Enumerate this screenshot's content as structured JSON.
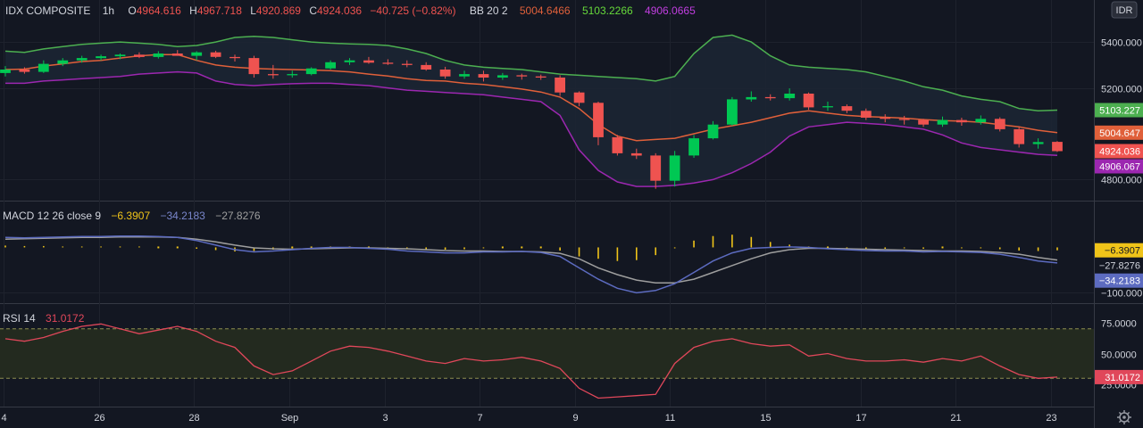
{
  "header": {
    "symbol": "IDX COMPOSITE",
    "interval": "1h",
    "o_label": "O",
    "o_value": "4964.616",
    "h_label": "H",
    "h_value": "4967.718",
    "l_label": "L",
    "l_value": "4920.869",
    "c_label": "C",
    "c_value": "4924.036",
    "change": "−40.725 (−0.82%)",
    "bb_label": "BB 20 2",
    "bb_mid": "5004.6466",
    "bb_upper": "5103.2266",
    "bb_lower": "4906.0665",
    "currency": "IDR"
  },
  "macd_header": {
    "label": "MACD 12 26 close 9",
    "hist": "−6.3907",
    "macd": "−34.2183",
    "signal": "−27.8276"
  },
  "rsi_header": {
    "label": "RSI 14",
    "value": "31.0172"
  },
  "colors": {
    "background": "#131722",
    "up": "#26a69a",
    "up_bright": "#00c853",
    "down": "#ef5350",
    "bb_upper": "#4caf50",
    "bb_mid": "#e0603a",
    "bb_lower": "#9c27b0",
    "bb_fill": "#1c2533",
    "macd_line": "#5c6bc0",
    "signal_line": "#9e9e9e",
    "hist": "#f0c419",
    "rsi_line": "#e0475a",
    "rsi_band": "#232a1f",
    "rsi_level": "#8d8d50"
  },
  "x_axis": {
    "labels": [
      {
        "t": 0,
        "text": "4"
      },
      {
        "t": 1,
        "text": "26"
      },
      {
        "t": 2,
        "text": "28"
      },
      {
        "t": 3,
        "text": "Sep"
      },
      {
        "t": 4,
        "text": "3"
      },
      {
        "t": 5,
        "text": "7"
      },
      {
        "t": 6,
        "text": "9"
      },
      {
        "t": 7,
        "text": "11"
      },
      {
        "t": 8,
        "text": "15"
      },
      {
        "t": 9,
        "text": "17"
      },
      {
        "t": 10,
        "text": "21"
      },
      {
        "t": 11,
        "text": "23"
      }
    ]
  },
  "price_axis": {
    "ticks": [
      "5400.000",
      "5200.000",
      "4800.000"
    ],
    "tick_values": [
      5400,
      5200,
      4800
    ],
    "range": [
      4720,
      5490
    ],
    "tags": [
      {
        "value": 5103.227,
        "text": "5103.227",
        "color": "#4caf50"
      },
      {
        "value": 5004.647,
        "text": "5004.647",
        "color": "#e0603a"
      },
      {
        "value": 4924.036,
        "text": "4924.036",
        "color": "#ef5350"
      },
      {
        "value": 4906.067,
        "text": "4906.067",
        "color": "#9c27b0"
      }
    ]
  },
  "macd_axis": {
    "ticks": [
      "−100.000"
    ],
    "tick_values": [
      -100
    ],
    "range": [
      -115,
      50
    ],
    "tags": [
      {
        "value": -6.3907,
        "text": "−6.3907",
        "color": "#f0c419",
        "text_color": "#131722"
      },
      {
        "value": -27.8276,
        "text": "−27.8276",
        "color": "#131722",
        "text_color": "#d1d4dc"
      },
      {
        "value": -34.2183,
        "text": "−34.2183",
        "color": "#5c6bc0",
        "text_color": "#ffffff"
      }
    ]
  },
  "rsi_axis": {
    "ticks": [
      "75.0000",
      "50.0000",
      "25.0000"
    ],
    "tick_values": [
      75,
      50,
      25
    ],
    "range": [
      10,
      85
    ],
    "levels": [
      70,
      30
    ],
    "tags": [
      {
        "value": 31.0172,
        "text": "31.0172",
        "color": "#e0475a",
        "text_color": "#ffffff"
      }
    ]
  },
  "chart_data": {
    "type": "candlestick",
    "title": "IDX COMPOSITE, 1h",
    "x_dates": [
      "4",
      "26",
      "28",
      "Sep",
      "3",
      "7",
      "9",
      "11",
      "15",
      "17",
      "21",
      "23"
    ],
    "bollinger_bands": {
      "upper": [
        5360,
        5355,
        5370,
        5380,
        5390,
        5395,
        5400,
        5395,
        5390,
        5380,
        5385,
        5400,
        5420,
        5425,
        5420,
        5410,
        5400,
        5395,
        5392,
        5390,
        5385,
        5370,
        5350,
        5320,
        5300,
        5290,
        5285,
        5280,
        5270,
        5260,
        5255,
        5250,
        5245,
        5240,
        5230,
        5250,
        5350,
        5420,
        5430,
        5400,
        5340,
        5300,
        5290,
        5285,
        5280,
        5270,
        5250,
        5230,
        5205,
        5190,
        5165,
        5150,
        5140,
        5110,
        5100,
        5103
      ],
      "middle": [
        5280,
        5282,
        5295,
        5305,
        5315,
        5320,
        5330,
        5340,
        5345,
        5345,
        5320,
        5300,
        5290,
        5285,
        5282,
        5280,
        5278,
        5275,
        5270,
        5260,
        5252,
        5240,
        5232,
        5230,
        5220,
        5215,
        5205,
        5195,
        5182,
        5160,
        5110,
        5040,
        4990,
        4970,
        4975,
        4980,
        5000,
        5020,
        5035,
        5050,
        5070,
        5090,
        5100,
        5090,
        5080,
        5075,
        5072,
        5068,
        5062,
        5057,
        5055,
        5050,
        5040,
        5030,
        5015,
        5005
      ],
      "lower": [
        5220,
        5220,
        5230,
        5235,
        5240,
        5245,
        5250,
        5260,
        5265,
        5270,
        5265,
        5230,
        5215,
        5210,
        5215,
        5218,
        5220,
        5220,
        5215,
        5210,
        5200,
        5190,
        5185,
        5180,
        5175,
        5170,
        5160,
        5150,
        5140,
        5080,
        4930,
        4840,
        4790,
        4770,
        4770,
        4775,
        4785,
        4800,
        4830,
        4870,
        4920,
        4990,
        5030,
        5040,
        5050,
        5045,
        5040,
        5030,
        5020,
        4995,
        4960,
        4940,
        4930,
        4920,
        4910,
        4906
      ]
    },
    "candles": [
      {
        "o": 5265,
        "h": 5295,
        "l": 5250,
        "c": 5280
      },
      {
        "o": 5280,
        "h": 5290,
        "l": 5262,
        "c": 5270
      },
      {
        "o": 5270,
        "h": 5320,
        "l": 5265,
        "c": 5305
      },
      {
        "o": 5305,
        "h": 5330,
        "l": 5295,
        "c": 5320
      },
      {
        "o": 5320,
        "h": 5340,
        "l": 5310,
        "c": 5330
      },
      {
        "o": 5330,
        "h": 5345,
        "l": 5320,
        "c": 5338
      },
      {
        "o": 5338,
        "h": 5350,
        "l": 5325,
        "c": 5345
      },
      {
        "o": 5345,
        "h": 5355,
        "l": 5330,
        "c": 5335
      },
      {
        "o": 5335,
        "h": 5360,
        "l": 5328,
        "c": 5350
      },
      {
        "o": 5350,
        "h": 5365,
        "l": 5340,
        "c": 5340
      },
      {
        "o": 5340,
        "h": 5360,
        "l": 5320,
        "c": 5355
      },
      {
        "o": 5355,
        "h": 5362,
        "l": 5330,
        "c": 5335
      },
      {
        "o": 5335,
        "h": 5345,
        "l": 5315,
        "c": 5330
      },
      {
        "o": 5330,
        "h": 5340,
        "l": 5245,
        "c": 5260
      },
      {
        "o": 5260,
        "h": 5300,
        "l": 5240,
        "c": 5255
      },
      {
        "o": 5255,
        "h": 5275,
        "l": 5245,
        "c": 5260
      },
      {
        "o": 5260,
        "h": 5290,
        "l": 5255,
        "c": 5285
      },
      {
        "o": 5285,
        "h": 5320,
        "l": 5280,
        "c": 5312
      },
      {
        "o": 5312,
        "h": 5330,
        "l": 5300,
        "c": 5320
      },
      {
        "o": 5320,
        "h": 5335,
        "l": 5305,
        "c": 5310
      },
      {
        "o": 5310,
        "h": 5325,
        "l": 5300,
        "c": 5305
      },
      {
        "o": 5305,
        "h": 5320,
        "l": 5290,
        "c": 5300
      },
      {
        "o": 5300,
        "h": 5312,
        "l": 5275,
        "c": 5280
      },
      {
        "o": 5280,
        "h": 5292,
        "l": 5240,
        "c": 5250
      },
      {
        "o": 5250,
        "h": 5275,
        "l": 5240,
        "c": 5260
      },
      {
        "o": 5260,
        "h": 5275,
        "l": 5228,
        "c": 5245
      },
      {
        "o": 5245,
        "h": 5265,
        "l": 5235,
        "c": 5255
      },
      {
        "o": 5255,
        "h": 5262,
        "l": 5236,
        "c": 5250
      },
      {
        "o": 5250,
        "h": 5258,
        "l": 5235,
        "c": 5245
      },
      {
        "o": 5245,
        "h": 5255,
        "l": 5165,
        "c": 5180
      },
      {
        "o": 5180,
        "h": 5185,
        "l": 5120,
        "c": 5135
      },
      {
        "o": 5135,
        "h": 5140,
        "l": 4950,
        "c": 4985
      },
      {
        "o": 4985,
        "h": 4995,
        "l": 4905,
        "c": 4915
      },
      {
        "o": 4915,
        "h": 4935,
        "l": 4890,
        "c": 4905
      },
      {
        "o": 4905,
        "h": 4915,
        "l": 4760,
        "c": 4795
      },
      {
        "o": 4795,
        "h": 4925,
        "l": 4770,
        "c": 4905
      },
      {
        "o": 4905,
        "h": 4995,
        "l": 4895,
        "c": 4980
      },
      {
        "o": 4980,
        "h": 5055,
        "l": 4975,
        "c": 5040
      },
      {
        "o": 5040,
        "h": 5160,
        "l": 5035,
        "c": 5150
      },
      {
        "o": 5150,
        "h": 5185,
        "l": 5140,
        "c": 5160
      },
      {
        "o": 5160,
        "h": 5172,
        "l": 5145,
        "c": 5155
      },
      {
        "o": 5155,
        "h": 5198,
        "l": 5145,
        "c": 5175
      },
      {
        "o": 5175,
        "h": 5180,
        "l": 5105,
        "c": 5115
      },
      {
        "o": 5115,
        "h": 5140,
        "l": 5100,
        "c": 5120
      },
      {
        "o": 5120,
        "h": 5128,
        "l": 5090,
        "c": 5100
      },
      {
        "o": 5100,
        "h": 5110,
        "l": 5060,
        "c": 5070
      },
      {
        "o": 5070,
        "h": 5085,
        "l": 5050,
        "c": 5065
      },
      {
        "o": 5065,
        "h": 5078,
        "l": 5040,
        "c": 5060
      },
      {
        "o": 5060,
        "h": 5065,
        "l": 5030,
        "c": 5040
      },
      {
        "o": 5040,
        "h": 5075,
        "l": 5030,
        "c": 5060
      },
      {
        "o": 5060,
        "h": 5070,
        "l": 5035,
        "c": 5050
      },
      {
        "o": 5050,
        "h": 5080,
        "l": 5040,
        "c": 5065
      },
      {
        "o": 5065,
        "h": 5072,
        "l": 5010,
        "c": 5020
      },
      {
        "o": 5020,
        "h": 5030,
        "l": 4940,
        "c": 4955
      },
      {
        "o": 4955,
        "h": 4980,
        "l": 4935,
        "c": 4964
      },
      {
        "o": 4964.616,
        "h": 4967.718,
        "l": 4920.869,
        "c": 4924.036
      }
    ],
    "macd": {
      "macd_line": [
        22,
        21,
        22,
        23,
        24,
        24,
        25,
        25,
        24,
        22,
        15,
        5,
        -5,
        -10,
        -8,
        -5,
        -2,
        0,
        0,
        -2,
        -4,
        -8,
        -10,
        -12,
        -12,
        -10,
        -10,
        -9,
        -11,
        -20,
        -45,
        -70,
        -90,
        -100,
        -95,
        -80,
        -55,
        -30,
        -12,
        -2,
        0,
        1,
        0,
        -3,
        -5,
        -7,
        -8,
        -8,
        -10,
        -9,
        -10,
        -11,
        -15,
        -22,
        -30,
        -34.2183
      ],
      "signal_line": [
        18,
        19,
        20,
        21,
        22,
        22,
        23,
        23,
        23,
        22,
        18,
        12,
        5,
        -1,
        -3,
        -4,
        -3,
        -2,
        -1,
        -1,
        -2,
        -3,
        -5,
        -7,
        -8,
        -8,
        -9,
        -9,
        -10,
        -13,
        -25,
        -45,
        -60,
        -72,
        -78,
        -78,
        -70,
        -55,
        -40,
        -25,
        -12,
        -5,
        -2,
        -2,
        -3,
        -4,
        -5,
        -6,
        -7,
        -8,
        -8,
        -9,
        -11,
        -15,
        -22,
        -27.8276
      ],
      "histogram": [
        4,
        3,
        3,
        2,
        2,
        2,
        2,
        2,
        1,
        0,
        -3,
        -6,
        -9,
        -8,
        -5,
        -1,
        1,
        2,
        1,
        -1,
        -2,
        -4,
        -5,
        -5,
        -4,
        -2,
        -1,
        0,
        -1,
        -7,
        -20,
        -25,
        -30,
        -28,
        -17,
        -2,
        15,
        25,
        28,
        23,
        12,
        6,
        2,
        -1,
        -2,
        -3,
        -3,
        -2,
        -3,
        -1,
        -2,
        -2,
        -4,
        -7,
        -8,
        -6.3907
      ]
    },
    "rsi": [
      62,
      60,
      63,
      68,
      72,
      74,
      70,
      66,
      69,
      72,
      68,
      60,
      55,
      40,
      33,
      36,
      44,
      52,
      56,
      55,
      52,
      48,
      44,
      42,
      46,
      44,
      45,
      47,
      44,
      38,
      22,
      14,
      15,
      16,
      17,
      42,
      55,
      60,
      62,
      58,
      56,
      57,
      48,
      50,
      46,
      44,
      44,
      45,
      43,
      46,
      44,
      48,
      40,
      33,
      30,
      31.0172
    ]
  }
}
